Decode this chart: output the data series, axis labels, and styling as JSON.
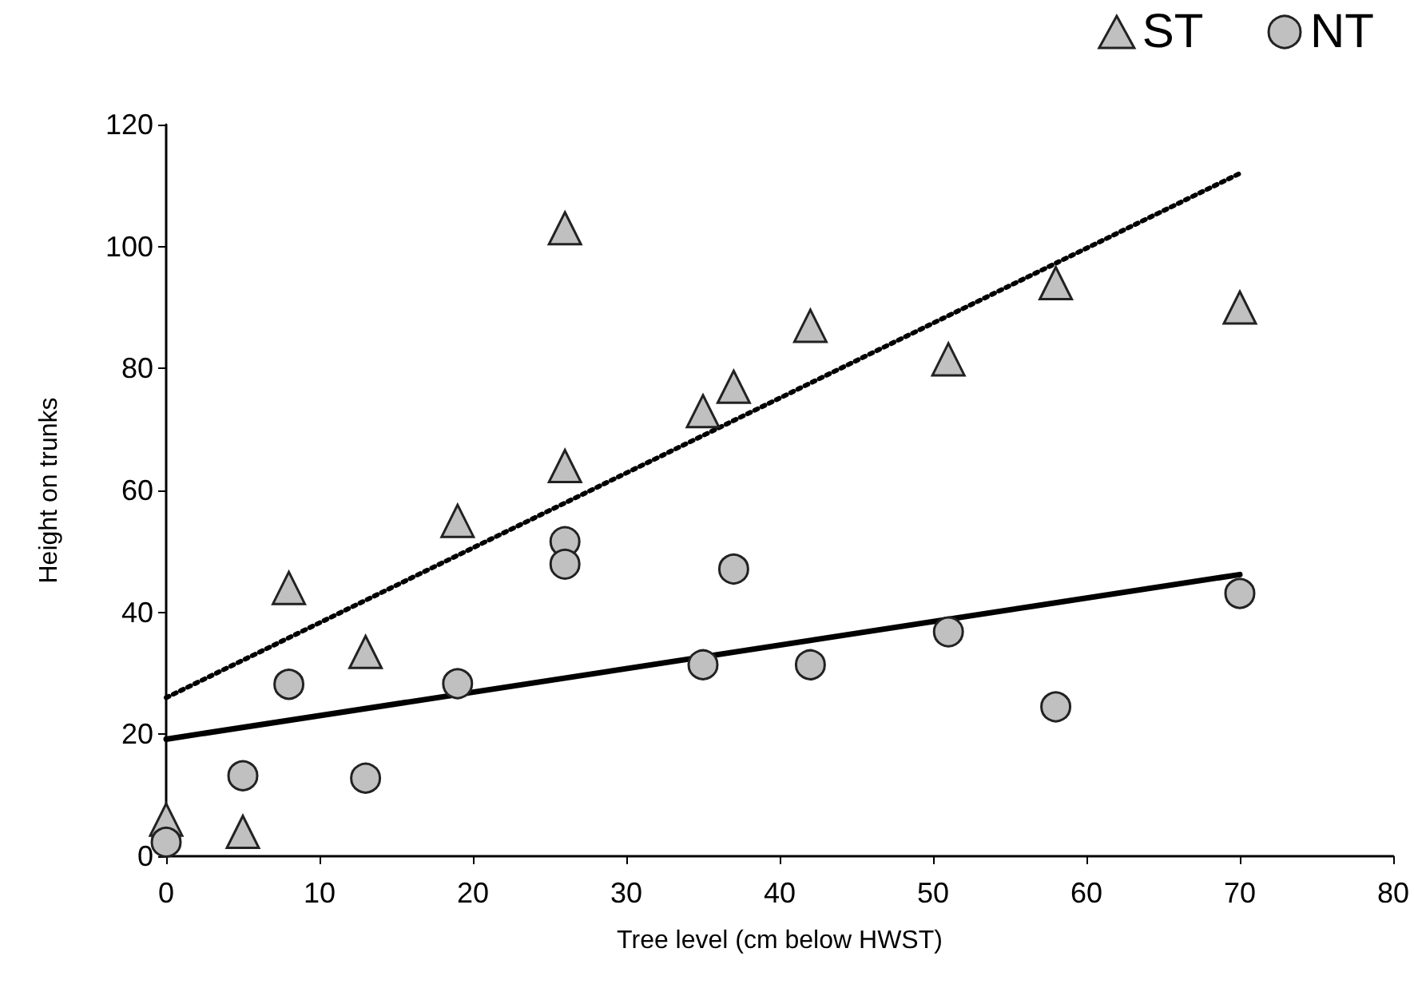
{
  "chart_data": {
    "type": "scatter",
    "xlabel": "Tree level (cm below HWST)",
    "ylabel": "Height on trunks",
    "xlim": [
      0,
      80
    ],
    "xticks": [
      0,
      10,
      20,
      30,
      40,
      50,
      60,
      70,
      80
    ],
    "ylim": [
      0,
      120
    ],
    "yticks": [
      0,
      20,
      40,
      60,
      80,
      100,
      120
    ],
    "grid": false,
    "legend": "top right",
    "series": [
      {
        "name": "ST",
        "color": "#c0c0c0",
        "marker": "triangle",
        "x": [
          0,
          5,
          8,
          13,
          19,
          26,
          26,
          35,
          37,
          42,
          51,
          58,
          70
        ],
        "values": [
          6,
          4,
          44,
          33.5,
          55,
          103,
          64,
          73,
          77,
          87,
          81.5,
          94,
          90
        ]
      },
      {
        "name": "NT",
        "color": "#c0c0c0",
        "marker": "circle",
        "x": [
          0,
          5,
          8,
          13,
          19,
          26,
          26,
          35,
          37,
          42,
          51,
          58,
          70
        ],
        "values": [
          2.3,
          13.2,
          28.2,
          12.8,
          28.3,
          51.6,
          47.9,
          31.4,
          47.1,
          31.4,
          36.8,
          24.5,
          43.1
        ]
      },
      {
        "type": "line",
        "color": "#000000",
        "marker": "none",
        "line_style": "dotted",
        "x": [
          0,
          70
        ],
        "values": [
          26,
          112
        ]
      },
      {
        "type": "line",
        "color": "#000000",
        "marker": "none",
        "line_style": "solid",
        "x": [
          0,
          70
        ],
        "values": [
          19.2,
          46.2
        ]
      }
    ]
  }
}
